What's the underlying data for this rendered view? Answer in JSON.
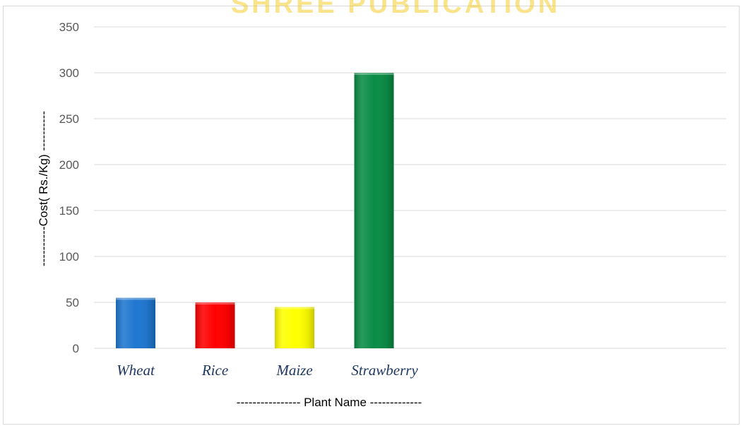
{
  "chart_data": {
    "type": "bar",
    "categories": [
      "Wheat",
      "Rice",
      "Maize",
      "Strawberry"
    ],
    "values": [
      55,
      50,
      45,
      300
    ],
    "bar_colors": [
      "#1f77d0",
      "#ff0000",
      "#ffff00",
      "#0a8c45"
    ],
    "title": "",
    "xlabel": "---------------- Plant Name -------------",
    "ylabel": "----------Cost( Rs./Kg) ----------",
    "ylim": [
      0,
      350
    ],
    "yticks": [
      "0",
      "50",
      "100",
      "150",
      "200",
      "250",
      "300",
      "350"
    ],
    "grid": true,
    "legend": false
  },
  "colors": {
    "gridline": "#d9d9d9",
    "tick_text": "#595959",
    "category_text": "#1f3864",
    "watermark": "#f2c200"
  },
  "watermark_text": "SHREE PUBLICATION"
}
